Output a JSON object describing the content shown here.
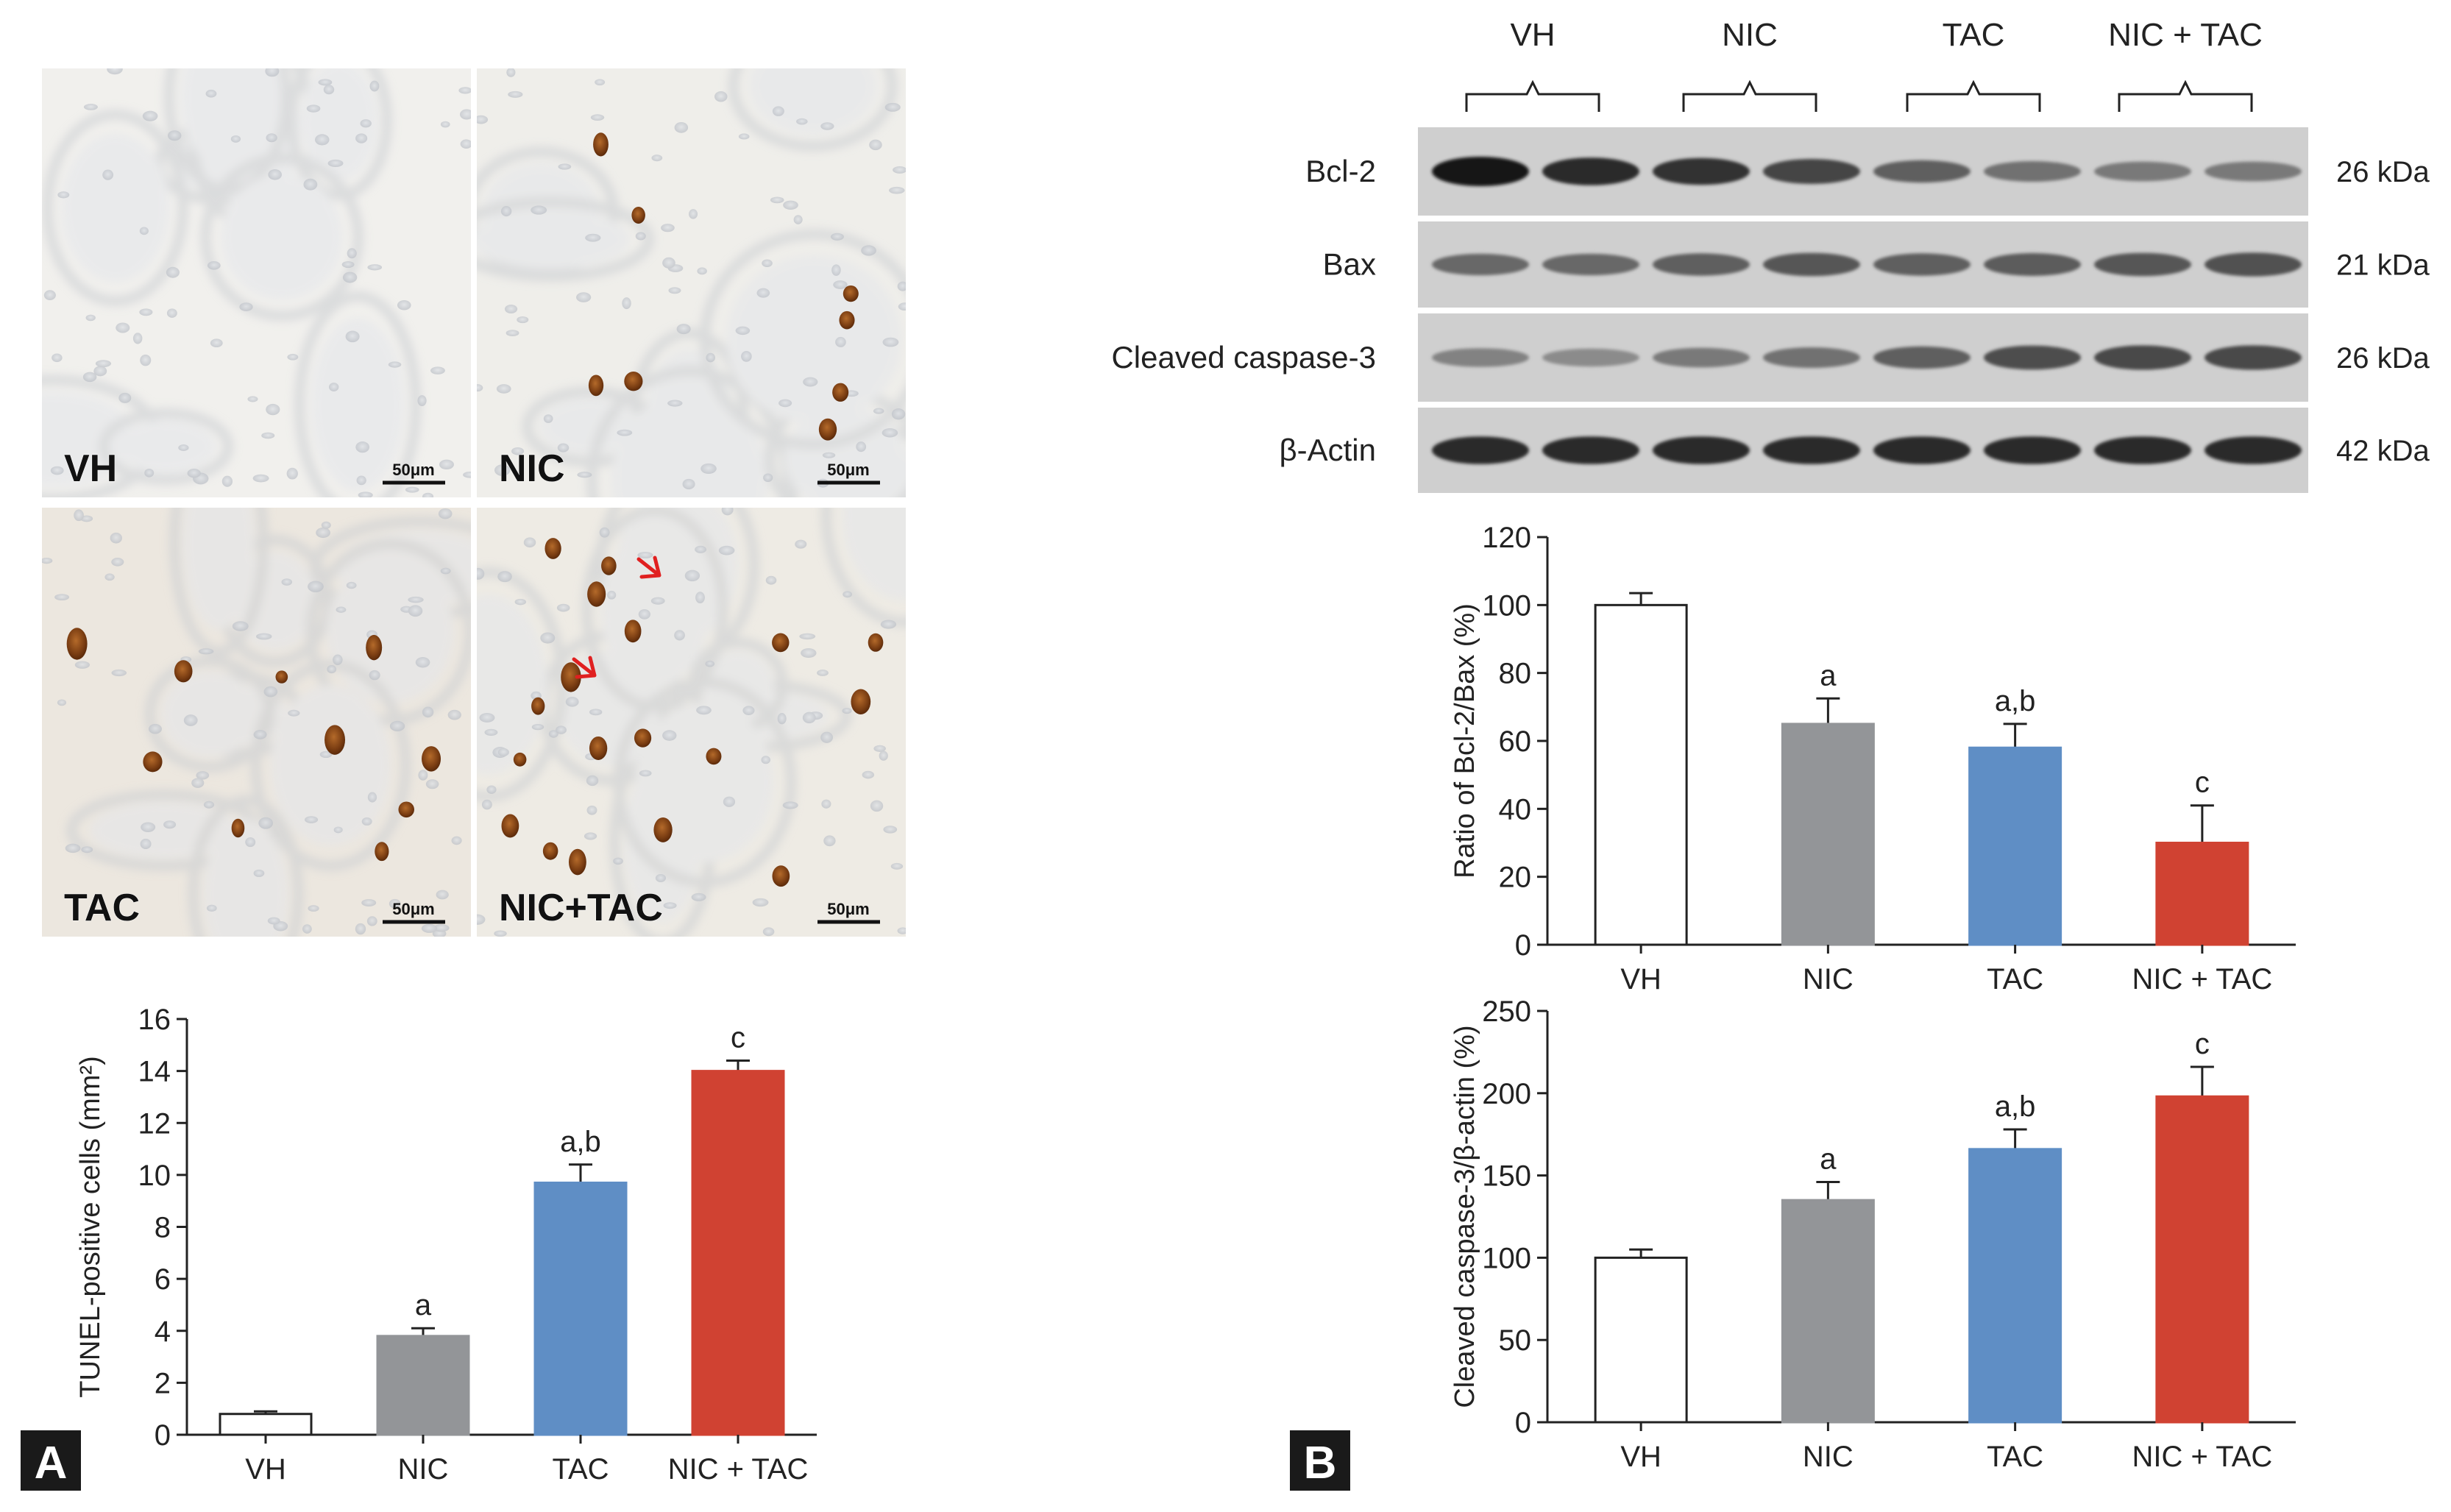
{
  "panels": {
    "A": {
      "label": "A"
    },
    "B": {
      "label": "B"
    }
  },
  "micrographs": [
    {
      "label": "VH",
      "scale_bar": "50μm",
      "tunel_nuclei": 0
    },
    {
      "label": "NIC",
      "scale_bar": "50μm",
      "tunel_nuclei": 8
    },
    {
      "label": "TAC",
      "scale_bar": "50μm",
      "tunel_nuclei": 10
    },
    {
      "label": "NIC+TAC",
      "scale_bar": "50μm",
      "tunel_nuclei": 18,
      "arrows": 2
    }
  ],
  "western_blot": {
    "groups": [
      "VH",
      "NIC",
      "TAC",
      "NIC + TAC"
    ],
    "bands": [
      {
        "protein": "Bcl-2",
        "size": "26 kDa",
        "intensity": [
          1.0,
          0.9,
          0.85,
          0.75,
          0.6,
          0.5,
          0.45,
          0.45
        ]
      },
      {
        "protein": "Bax",
        "size": "21 kDa",
        "intensity": [
          0.55,
          0.55,
          0.6,
          0.65,
          0.6,
          0.62,
          0.65,
          0.68
        ]
      },
      {
        "protein": "Cleaved caspase-3",
        "size": "26 kDa",
        "intensity": [
          0.4,
          0.35,
          0.45,
          0.5,
          0.6,
          0.7,
          0.72,
          0.72
        ]
      },
      {
        "protein": "β-Actin",
        "size": "42 kDa",
        "intensity": [
          0.9,
          0.9,
          0.9,
          0.9,
          0.9,
          0.9,
          0.9,
          0.9
        ]
      }
    ]
  },
  "chart_data": [
    {
      "type": "bar",
      "panel": "A",
      "categories": [
        "VH",
        "NIC",
        "TAC",
        "NIC + TAC"
      ],
      "values": [
        0.8,
        3.8,
        9.7,
        14.0
      ],
      "errors": [
        0.1,
        0.3,
        0.7,
        0.4
      ],
      "annotations": [
        "",
        "a",
        "a,b",
        "c"
      ],
      "colors": [
        "#ffffff",
        "#939598",
        "#5f8ec5",
        "#d04232"
      ],
      "ylabel": "TUNEL-positive cells (mm²)",
      "xlabel": "",
      "ylim": [
        0,
        16
      ],
      "yticks": [
        0,
        2,
        4,
        6,
        8,
        10,
        12,
        14,
        16
      ]
    },
    {
      "type": "bar",
      "panel": "B",
      "categories": [
        "VH",
        "NIC",
        "TAC",
        "NIC + TAC"
      ],
      "values": [
        100,
        65,
        58,
        30
      ],
      "errors": [
        3.5,
        7.5,
        7,
        11
      ],
      "annotations": [
        "",
        "a",
        "a,b",
        "c"
      ],
      "colors": [
        "#ffffff",
        "#939598",
        "#5f8ec5",
        "#d04232"
      ],
      "ylabel": "Ratio of Bcl-2/Bax (%)",
      "xlabel": "",
      "ylim": [
        0,
        120
      ],
      "yticks": [
        0,
        20,
        40,
        60,
        80,
        100,
        120
      ]
    },
    {
      "type": "bar",
      "panel": "B",
      "categories": [
        "VH",
        "NIC",
        "TAC",
        "NIC + TAC"
      ],
      "values": [
        100,
        135,
        166,
        198
      ],
      "errors": [
        5,
        11,
        12,
        18
      ],
      "annotations": [
        "",
        "a",
        "a,b",
        "c"
      ],
      "colors": [
        "#ffffff",
        "#939598",
        "#5f8ec5",
        "#d04232"
      ],
      "ylabel": "Cleaved caspase-3/β-actin (%)",
      "xlabel": "",
      "ylim": [
        0,
        250
      ],
      "yticks": [
        0,
        50,
        100,
        150,
        200,
        250
      ]
    }
  ]
}
